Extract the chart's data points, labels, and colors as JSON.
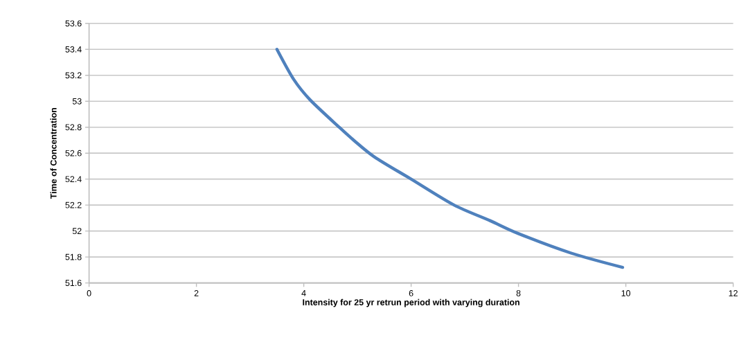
{
  "chart_data": {
    "type": "line",
    "xlabel": "Intensity for 25 yr retrun period with varying duration",
    "ylabel": "Time of Concentration",
    "x": [
      3.5,
      3.81,
      4.12,
      4.66,
      4.93,
      5.32,
      6.0,
      6.8,
      7.47,
      8.0,
      8.98,
      9.94
    ],
    "series": [
      {
        "color": "#4f81bd",
        "values": [
          53.4,
          53.17,
          53.01,
          52.8,
          52.7,
          52.57,
          52.4,
          52.2,
          52.08,
          51.98,
          51.83,
          51.72
        ]
      }
    ],
    "xlim": [
      0,
      12
    ],
    "ylim": [
      51.6,
      53.6
    ],
    "xticks": [
      0,
      2,
      4,
      6,
      8,
      10,
      12
    ],
    "yticks": [
      51.6,
      51.8,
      52,
      52.2,
      52.4,
      52.6,
      52.8,
      53,
      53.2,
      53.4,
      53.6
    ],
    "grid": "y",
    "marker": "none",
    "line_style": "solid"
  }
}
